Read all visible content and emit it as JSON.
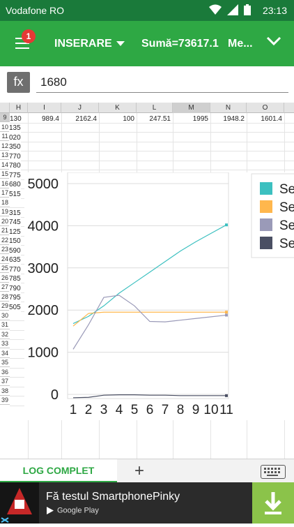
{
  "status": {
    "carrier": "Vodafone RO",
    "time": "23:13"
  },
  "toolbar": {
    "badge": "1",
    "mode": "INSERARE",
    "sum": "Sumă=73617.1",
    "more": "Me..."
  },
  "formula": {
    "fx": "fx",
    "value": "1680"
  },
  "columns": [
    "H",
    "I",
    "J",
    "K",
    "L",
    "M",
    "N",
    "O"
  ],
  "rows": [
    "9",
    "10",
    "11",
    "12",
    "13",
    "14",
    "15",
    "16",
    "17",
    "18",
    "19",
    "20",
    "21",
    "22",
    "23",
    "24",
    "25",
    "26",
    "27",
    "28",
    "29",
    "30",
    "31",
    "32",
    "33",
    "34",
    "35",
    "36",
    "37",
    "38",
    "39"
  ],
  "row9": {
    "H": "130",
    "I": "989.4",
    "J": "2162.4",
    "K": "100",
    "L": "247.51",
    "M": "1995",
    "N": "1948.2",
    "O": "1601.4"
  },
  "colH_values": [
    "135",
    "020",
    "350",
    "770",
    "780",
    "775",
    "680",
    "515",
    "",
    "315",
    "745",
    "125",
    "150",
    "590",
    "635",
    "770",
    "785",
    "790",
    "795",
    "505"
  ],
  "chart_data": {
    "type": "line",
    "x": [
      1,
      2,
      3,
      4,
      5,
      6,
      7,
      8,
      9,
      10,
      11
    ],
    "xticks": [
      "1",
      "2",
      "3",
      "4",
      "5",
      "6",
      "7",
      "8",
      "9",
      "10",
      "11"
    ],
    "yticks": [
      "0",
      "1000",
      "2000",
      "3000",
      "4000",
      "5000"
    ],
    "ylim": [
      0,
      5000
    ],
    "grid": true,
    "legend_position": "right",
    "series": [
      {
        "name": "Se",
        "color": "#3cc0c0",
        "values": [
          1680,
          1850,
          2100,
          2400,
          2650,
          2900,
          3150,
          3400,
          3620,
          3820,
          4020
        ]
      },
      {
        "name": "Se",
        "color": "#ffb74d",
        "values": [
          1620,
          1920,
          1950,
          1950,
          1950,
          1950,
          1950,
          1950,
          1950,
          1950,
          1950
        ]
      },
      {
        "name": "Se",
        "color": "#9a9ab8",
        "values": [
          1070,
          1650,
          2300,
          2350,
          2100,
          1730,
          1720,
          1760,
          1800,
          1840,
          1880
        ]
      },
      {
        "name": "Se",
        "color": "#4a4f63",
        "values": [
          -80,
          -70,
          -20,
          -10,
          -10,
          -20,
          -20,
          -30,
          -30,
          -30,
          -30
        ]
      }
    ]
  },
  "tabs": {
    "active": "LOG COMPLET",
    "add": "+"
  },
  "ad": {
    "title": "Fă testul SmartphonePinky",
    "store": "Google Play"
  }
}
